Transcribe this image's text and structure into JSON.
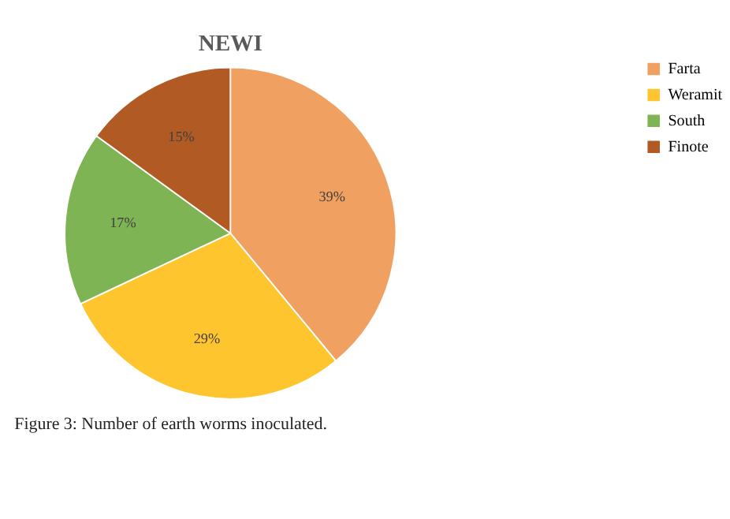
{
  "chart_data": {
    "type": "pie",
    "title": "NEWI",
    "categories": [
      "Farta",
      "Weramit",
      "South",
      "Finote"
    ],
    "values": [
      39,
      29,
      17,
      15
    ],
    "colors": [
      "#f0a061",
      "#ffc52e",
      "#7fb455",
      "#b15a23"
    ],
    "value_labels": [
      "39%",
      "29%",
      "17%",
      "15%"
    ],
    "legend": "right",
    "annotations": [
      "Figure 3: Number of earth worms inoculated."
    ]
  }
}
